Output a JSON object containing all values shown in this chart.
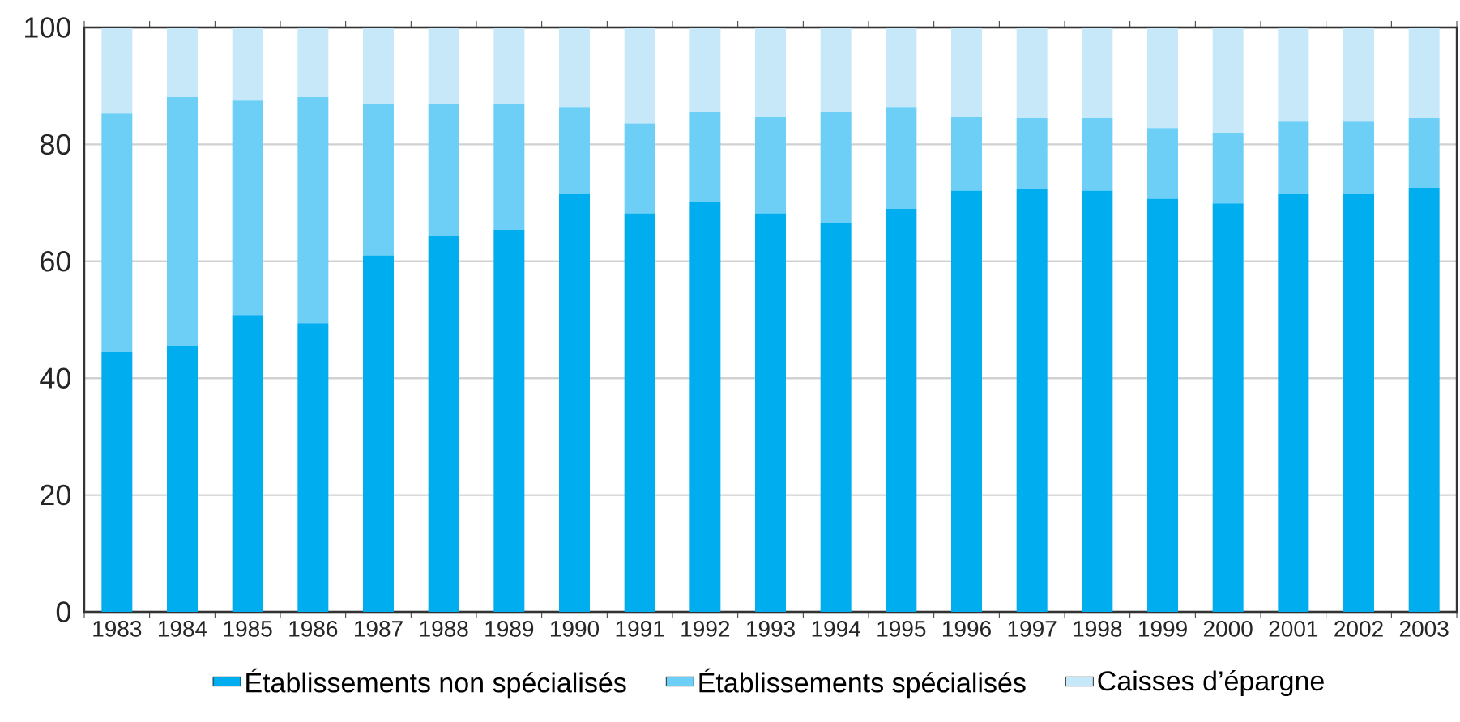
{
  "chart_data": {
    "type": "bar",
    "stacked": true,
    "categories": [
      "1983",
      "1984",
      "1985",
      "1986",
      "1987",
      "1988",
      "1989",
      "1990",
      "1991",
      "1992",
      "1993",
      "1994",
      "1995",
      "1996",
      "1997",
      "1998",
      "1999",
      "2000",
      "2001",
      "2002",
      "2003"
    ],
    "series": [
      {
        "name": "Établissements non spécialisés",
        "color": "#00adef",
        "values": [
          44.5,
          45.6,
          50.8,
          49.4,
          61.0,
          64.3,
          65.4,
          71.5,
          68.2,
          70.1,
          68.2,
          66.5,
          69.0,
          72.1,
          72.3,
          72.1,
          70.7,
          69.9,
          71.5,
          71.5,
          72.6
        ]
      },
      {
        "name": "Établissements spécialisés",
        "color": "#6dcff6",
        "values": [
          40.8,
          42.5,
          36.7,
          38.7,
          25.9,
          22.6,
          21.5,
          14.9,
          15.4,
          15.5,
          16.5,
          19.1,
          17.4,
          12.6,
          12.2,
          12.4,
          12.1,
          12.1,
          12.4,
          12.4,
          11.9
        ]
      },
      {
        "name": "Caisses d’épargne",
        "color": "#c7e8f8",
        "values": [
          14.7,
          11.9,
          12.5,
          11.9,
          13.1,
          13.1,
          13.1,
          13.6,
          16.4,
          14.4,
          15.3,
          14.4,
          13.6,
          15.3,
          15.5,
          15.5,
          17.2,
          18.0,
          16.1,
          16.1,
          15.5
        ]
      }
    ],
    "ylim": [
      0,
      100
    ],
    "yticks": [
      0,
      20,
      40,
      60,
      80,
      100
    ],
    "grid": "y",
    "legend": "bottom"
  }
}
